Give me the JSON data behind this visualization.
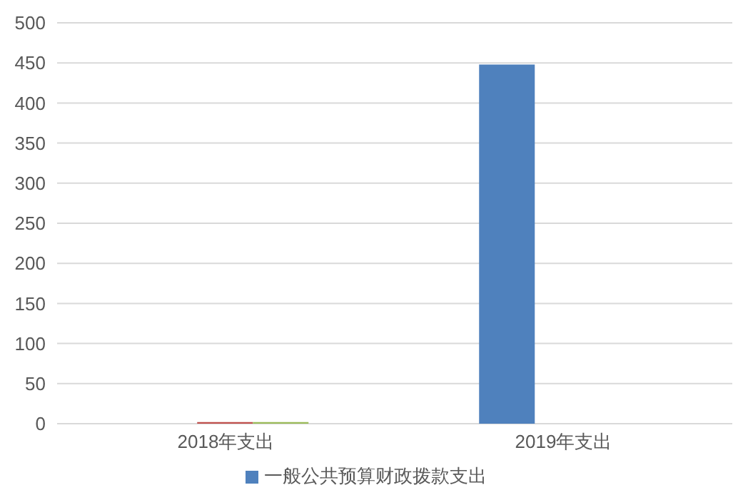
{
  "chart_data": {
    "type": "bar",
    "categories": [
      "2018年支出",
      "2019年支出"
    ],
    "series": [
      {
        "name": "一般公共预算财政拨款支出",
        "color": "#4f81bd",
        "values": [
          0,
          448
        ]
      },
      {
        "color": "#c0504d",
        "values": [
          2,
          0
        ]
      },
      {
        "color": "#9bbb59",
        "values": [
          2,
          0
        ]
      }
    ],
    "ylim": [
      0,
      500
    ],
    "yticks": [
      0,
      50,
      100,
      150,
      200,
      250,
      300,
      350,
      400,
      450,
      500
    ],
    "grid": "y",
    "legend": "bottom"
  }
}
